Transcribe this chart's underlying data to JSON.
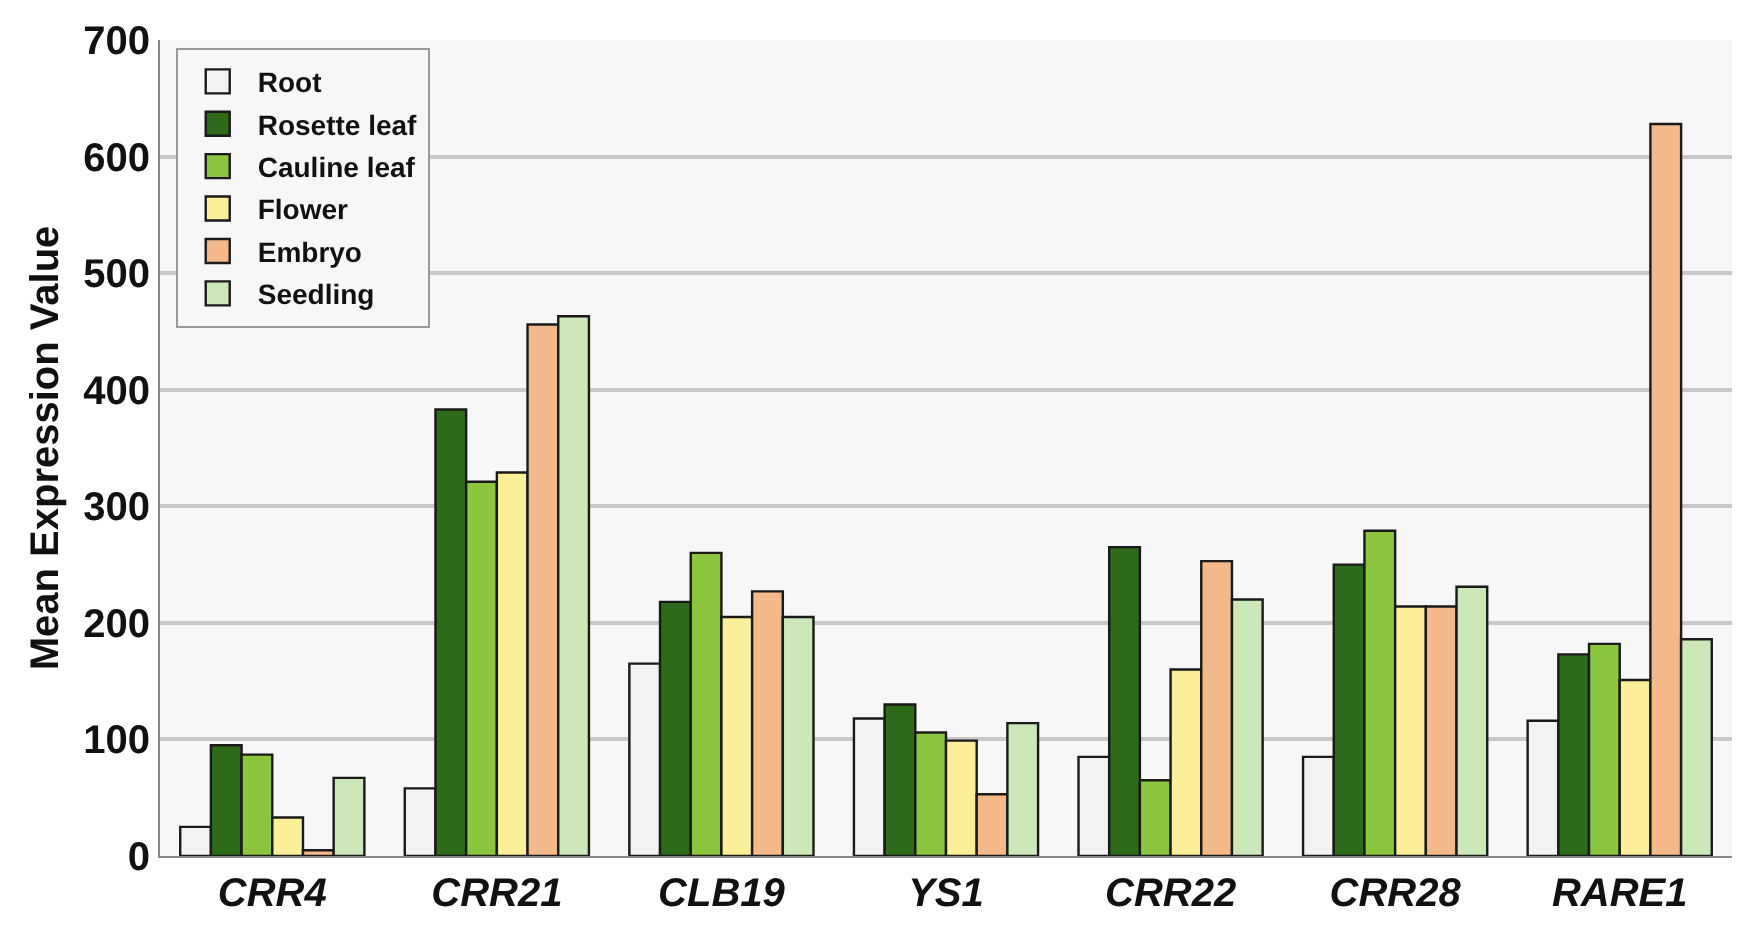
{
  "chart_data": {
    "type": "bar",
    "ylabel": "Mean Expression Value",
    "categories": [
      "CRR4",
      "CRR21",
      "CLB19",
      "YS1",
      "CRR22",
      "CRR28",
      "RARE1"
    ],
    "series": [
      {
        "name": "Root",
        "color": "#f2f2f2",
        "values": [
          25,
          58,
          165,
          118,
          85,
          85,
          116
        ]
      },
      {
        "name": "Rosette leaf",
        "color": "#2d6a1a",
        "values": [
          95,
          383,
          218,
          130,
          265,
          250,
          173
        ]
      },
      {
        "name": "Cauline leaf",
        "color": "#8cc63f",
        "values": [
          87,
          321,
          260,
          106,
          65,
          279,
          182
        ]
      },
      {
        "name": "Flower",
        "color": "#fbef9a",
        "values": [
          33,
          329,
          205,
          99,
          160,
          214,
          151
        ]
      },
      {
        "name": "Embryo",
        "color": "#f4b98a",
        "values": [
          5,
          456,
          227,
          53,
          253,
          214,
          628
        ]
      },
      {
        "name": "Seedling",
        "color": "#cde8b8",
        "values": [
          67,
          463,
          205,
          114,
          220,
          231,
          186
        ]
      }
    ],
    "ylim": [
      0,
      700
    ],
    "yticks": [
      0,
      100,
      200,
      300,
      400,
      500,
      600,
      700
    ],
    "grid": "y",
    "legend": "top left"
  }
}
